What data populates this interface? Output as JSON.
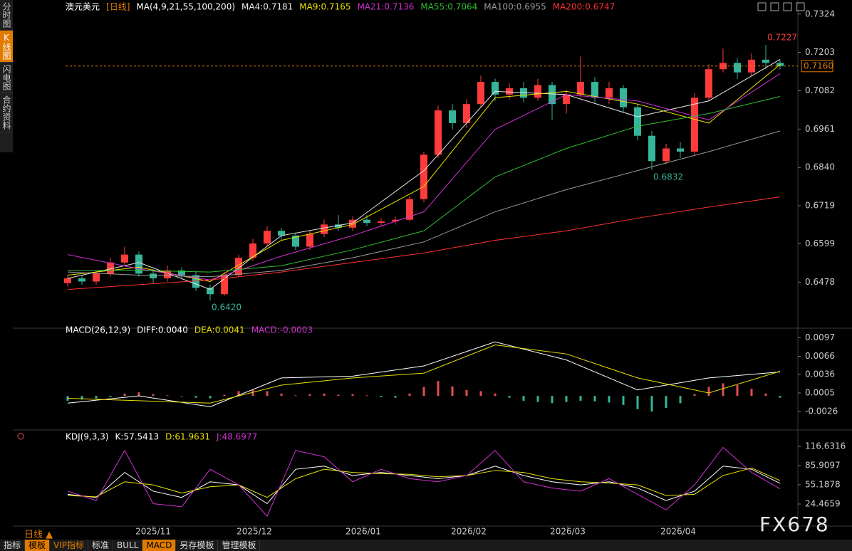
{
  "chart_data": [
    {
      "type": "candlestick",
      "title": "澳元美元",
      "subtitle": "[日线]",
      "params": "MA(4,9,21,55,100,200)",
      "up_color": "#ff3b3b",
      "down_color": "#35b59a",
      "open": [
        0.6475,
        0.649,
        0.648,
        0.6505,
        0.654,
        0.6565,
        0.6505,
        0.649,
        0.6515,
        0.65,
        0.646,
        0.644,
        0.65,
        0.6555,
        0.66,
        0.664,
        0.6625,
        0.659,
        0.663,
        0.666,
        0.665,
        0.6675,
        0.6665,
        0.667,
        0.6675,
        0.674,
        0.688,
        0.702,
        0.698,
        0.704,
        0.711,
        0.707,
        0.709,
        0.706,
        0.71,
        0.704,
        0.707,
        0.711,
        0.706,
        0.709,
        0.703,
        0.694,
        0.686,
        0.69,
        0.689,
        0.706,
        0.715,
        0.717,
        0.714,
        0.718,
        0.717
      ],
      "high": [
        0.65,
        0.65,
        0.6515,
        0.6555,
        0.659,
        0.6575,
        0.652,
        0.653,
        0.6525,
        0.651,
        0.647,
        0.651,
        0.6565,
        0.6615,
        0.6655,
        0.665,
        0.6635,
        0.664,
        0.6675,
        0.669,
        0.6685,
        0.669,
        0.668,
        0.6685,
        0.675,
        0.689,
        0.7035,
        0.704,
        0.7055,
        0.713,
        0.712,
        0.7105,
        0.711,
        0.712,
        0.711,
        0.7085,
        0.719,
        0.7125,
        0.711,
        0.71,
        0.704,
        0.6955,
        0.6915,
        0.692,
        0.7075,
        0.7165,
        0.7215,
        0.7185,
        0.72,
        0.7227,
        0.718
      ],
      "low": [
        0.6465,
        0.647,
        0.647,
        0.6495,
        0.653,
        0.6495,
        0.6475,
        0.648,
        0.649,
        0.645,
        0.642,
        0.6435,
        0.6495,
        0.6545,
        0.659,
        0.661,
        0.658,
        0.658,
        0.662,
        0.664,
        0.664,
        0.6655,
        0.6655,
        0.666,
        0.667,
        0.673,
        0.687,
        0.696,
        0.6965,
        0.703,
        0.705,
        0.7055,
        0.7045,
        0.705,
        0.699,
        0.701,
        0.706,
        0.7045,
        0.704,
        0.7015,
        0.6925,
        0.6832,
        0.685,
        0.687,
        0.688,
        0.705,
        0.714,
        0.712,
        0.713,
        0.715,
        0.715
      ],
      "close": [
        0.649,
        0.648,
        0.6505,
        0.654,
        0.6565,
        0.6505,
        0.649,
        0.6515,
        0.65,
        0.646,
        0.644,
        0.65,
        0.6555,
        0.66,
        0.664,
        0.6625,
        0.659,
        0.663,
        0.666,
        0.665,
        0.6675,
        0.6665,
        0.667,
        0.6675,
        0.674,
        0.688,
        0.702,
        0.698,
        0.704,
        0.711,
        0.707,
        0.709,
        0.706,
        0.71,
        0.704,
        0.707,
        0.711,
        0.706,
        0.709,
        0.703,
        0.694,
        0.686,
        0.69,
        0.689,
        0.706,
        0.715,
        0.717,
        0.714,
        0.718,
        0.717,
        0.716
      ],
      "series": [
        {
          "name": "MA4:0.7181",
          "color": "#e8e8e8",
          "x": [
            0,
            5,
            10,
            15,
            20,
            25,
            30,
            35,
            40,
            45,
            50
          ],
          "values": [
            0.649,
            0.654,
            0.6455,
            0.6625,
            0.6665,
            0.683,
            0.708,
            0.707,
            0.7,
            0.705,
            0.7181
          ]
        },
        {
          "name": "MA9:0.7165",
          "color": "#e8e000",
          "x": [
            0,
            5,
            10,
            15,
            20,
            25,
            30,
            35,
            40,
            45,
            50
          ],
          "values": [
            0.65,
            0.6525,
            0.648,
            0.661,
            0.666,
            0.678,
            0.706,
            0.708,
            0.704,
            0.698,
            0.7165
          ]
        },
        {
          "name": "MA21:0.7136",
          "color": "#d030d0",
          "x": [
            0,
            5,
            10,
            15,
            20,
            25,
            30,
            35,
            40,
            45,
            50
          ],
          "values": [
            0.6565,
            0.652,
            0.6485,
            0.656,
            0.6625,
            0.67,
            0.696,
            0.707,
            0.705,
            0.699,
            0.7136
          ]
        },
        {
          "name": "MA55:0.7064",
          "color": "#30c030",
          "x": [
            0,
            5,
            10,
            15,
            20,
            25,
            30,
            35,
            40,
            45,
            50
          ],
          "values": [
            0.6515,
            0.6515,
            0.651,
            0.653,
            0.658,
            0.664,
            0.681,
            0.69,
            0.697,
            0.701,
            0.7064
          ]
        },
        {
          "name": "MA100:0.6955",
          "color": "#9a9a9a",
          "x": [
            0,
            5,
            10,
            15,
            20,
            25,
            30,
            35,
            40,
            45,
            50
          ],
          "values": [
            0.651,
            0.65,
            0.6495,
            0.6515,
            0.6555,
            0.6605,
            0.67,
            0.677,
            0.683,
            0.689,
            0.6955
          ]
        },
        {
          "name": "MA200:0.6747",
          "color": "#ff3030",
          "x": [
            0,
            5,
            10,
            15,
            20,
            25,
            30,
            35,
            40,
            45,
            50
          ],
          "values": [
            0.6455,
            0.647,
            0.6485,
            0.651,
            0.654,
            0.657,
            0.661,
            0.664,
            0.668,
            0.6715,
            0.6747
          ]
        }
      ],
      "annotations": [
        {
          "label": "0.7227",
          "value": 0.7227
        },
        {
          "label": "0.6832",
          "value": 0.6832
        },
        {
          "label": "0.6420",
          "value": 0.642
        }
      ],
      "last_price": {
        "value": 0.716,
        "label": "0.7160"
      },
      "ylim": [
        0.6335,
        0.7328
      ],
      "yticks": [
        0.7324,
        0.7203,
        0.7082,
        0.6961,
        {
          "value": 0.684,
          "label": "0.6840"
        },
        0.6719,
        0.6599,
        0.6478
      ]
    },
    {
      "type": "macd",
      "title": "MACD(26,12,9)",
      "series": [
        {
          "name": "DIFF:0.0040",
          "color": "#ffffff",
          "x": [
            0,
            5,
            10,
            15,
            20,
            25,
            30,
            35,
            40,
            45,
            50
          ],
          "values": [
            -0.0012,
            0,
            -0.0018,
            0.003,
            0.0033,
            0.005,
            0.009,
            0.006,
            0.001,
            0.003,
            0.004
          ]
        },
        {
          "name": "DEA:0.0041",
          "color": "#e8e000",
          "x": [
            0,
            5,
            10,
            15,
            20,
            25,
            30,
            35,
            40,
            45,
            50
          ],
          "values": [
            -0.0004,
            -0.0008,
            -0.0012,
            0.0018,
            0.003,
            0.0038,
            0.0085,
            0.007,
            0.003,
            0.0005,
            0.0041
          ]
        },
        {
          "name": "MACD:-0.0003",
          "color": "#d030d0",
          "up_color": "#e05050",
          "down_color": "#35b59a",
          "values": [
            -0.0008,
            -0.0006,
            -0.0004,
            -0.0002,
            0.0004,
            0.0006,
            0.0003,
            0.0001,
            -0.0001,
            -0.0003,
            -0.0004,
            0.0002,
            0.0008,
            0.001,
            0.0008,
            0.0004,
            0.0001,
            0.0003,
            0.0004,
            0.0002,
            0.0003,
            0.0001,
            -0.0002,
            -0.0003,
            0.0004,
            0.0015,
            0.0025,
            0.0016,
            0.001,
            0.0008,
            0.0004,
            -0.0003,
            -0.0008,
            -0.001,
            -0.0012,
            -0.001,
            -0.0008,
            -0.0009,
            -0.0011,
            -0.0015,
            -0.0022,
            -0.0026,
            -0.002,
            -0.0012,
            0.0003,
            0.0015,
            0.0021,
            0.0018,
            0.0012,
            0.0004,
            -0.0003
          ]
        }
      ],
      "ylim": [
        -0.0052,
        0.0107
      ],
      "yticks": [
        0.0097,
        0.0066,
        0.0036,
        0.0005,
        -0.0026
      ]
    },
    {
      "type": "line",
      "title": "KDJ(9,3,3)",
      "series": [
        {
          "name": "K:57.5413",
          "color": "#ffffff",
          "x": [
            0,
            2,
            4,
            6,
            8,
            10,
            12,
            14,
            16,
            18,
            20,
            22,
            24,
            26,
            28,
            30,
            32,
            34,
            36,
            38,
            40,
            42,
            44,
            46,
            48,
            50
          ],
          "values": [
            40,
            35,
            75,
            45,
            35,
            60,
            55,
            25,
            80,
            85,
            70,
            75,
            70,
            65,
            70,
            85,
            70,
            60,
            55,
            60,
            50,
            30,
            45,
            85,
            80,
            57.5413
          ]
        },
        {
          "name": "D:61.9631",
          "color": "#e8e000",
          "x": [
            0,
            2,
            4,
            6,
            8,
            10,
            12,
            14,
            16,
            18,
            20,
            22,
            24,
            26,
            28,
            30,
            32,
            34,
            36,
            38,
            40,
            42,
            44,
            46,
            48,
            50
          ],
          "values": [
            38,
            36,
            60,
            55,
            42,
            52,
            55,
            35,
            65,
            80,
            75,
            73,
            72,
            68,
            70,
            78,
            75,
            65,
            60,
            58,
            55,
            38,
            40,
            70,
            82,
            61.9631
          ]
        },
        {
          "name": "J:48.6977",
          "color": "#d030d0",
          "x": [
            0,
            2,
            4,
            6,
            8,
            10,
            12,
            14,
            16,
            18,
            20,
            22,
            24,
            26,
            28,
            30,
            32,
            34,
            36,
            38,
            40,
            42,
            44,
            46,
            48,
            50
          ],
          "values": [
            45,
            30,
            110,
            25,
            20,
            80,
            55,
            5,
            110,
            100,
            60,
            80,
            65,
            60,
            70,
            110,
            60,
            50,
            45,
            65,
            40,
            15,
            55,
            115,
            75,
            48.6977
          ]
        }
      ],
      "ylim": [
        -9.7,
        133.7
      ],
      "yticks": [
        116.6316,
        85.9097,
        55.1878,
        24.4659
      ],
      "xticks": [
        {
          "value": 6,
          "label": "2025/11"
        },
        {
          "value": 13.1,
          "label": "2025/12"
        },
        {
          "value": 20.75,
          "label": "2026/01"
        },
        {
          "value": 28.15,
          "label": "2026/02"
        },
        {
          "value": 35.1,
          "label": "2026/03"
        },
        {
          "value": 42.85,
          "label": "2026/04"
        }
      ]
    }
  ],
  "ui": {
    "sidebar": [
      "分时图",
      "K线图",
      "闪电图",
      "合约资料"
    ],
    "period": "日线",
    "toolbar": [
      "指标",
      "模板",
      "VIP指标",
      "标准",
      "BULL",
      "MACD",
      "另存模板",
      "管理模板"
    ],
    "watermark": "FX678"
  }
}
